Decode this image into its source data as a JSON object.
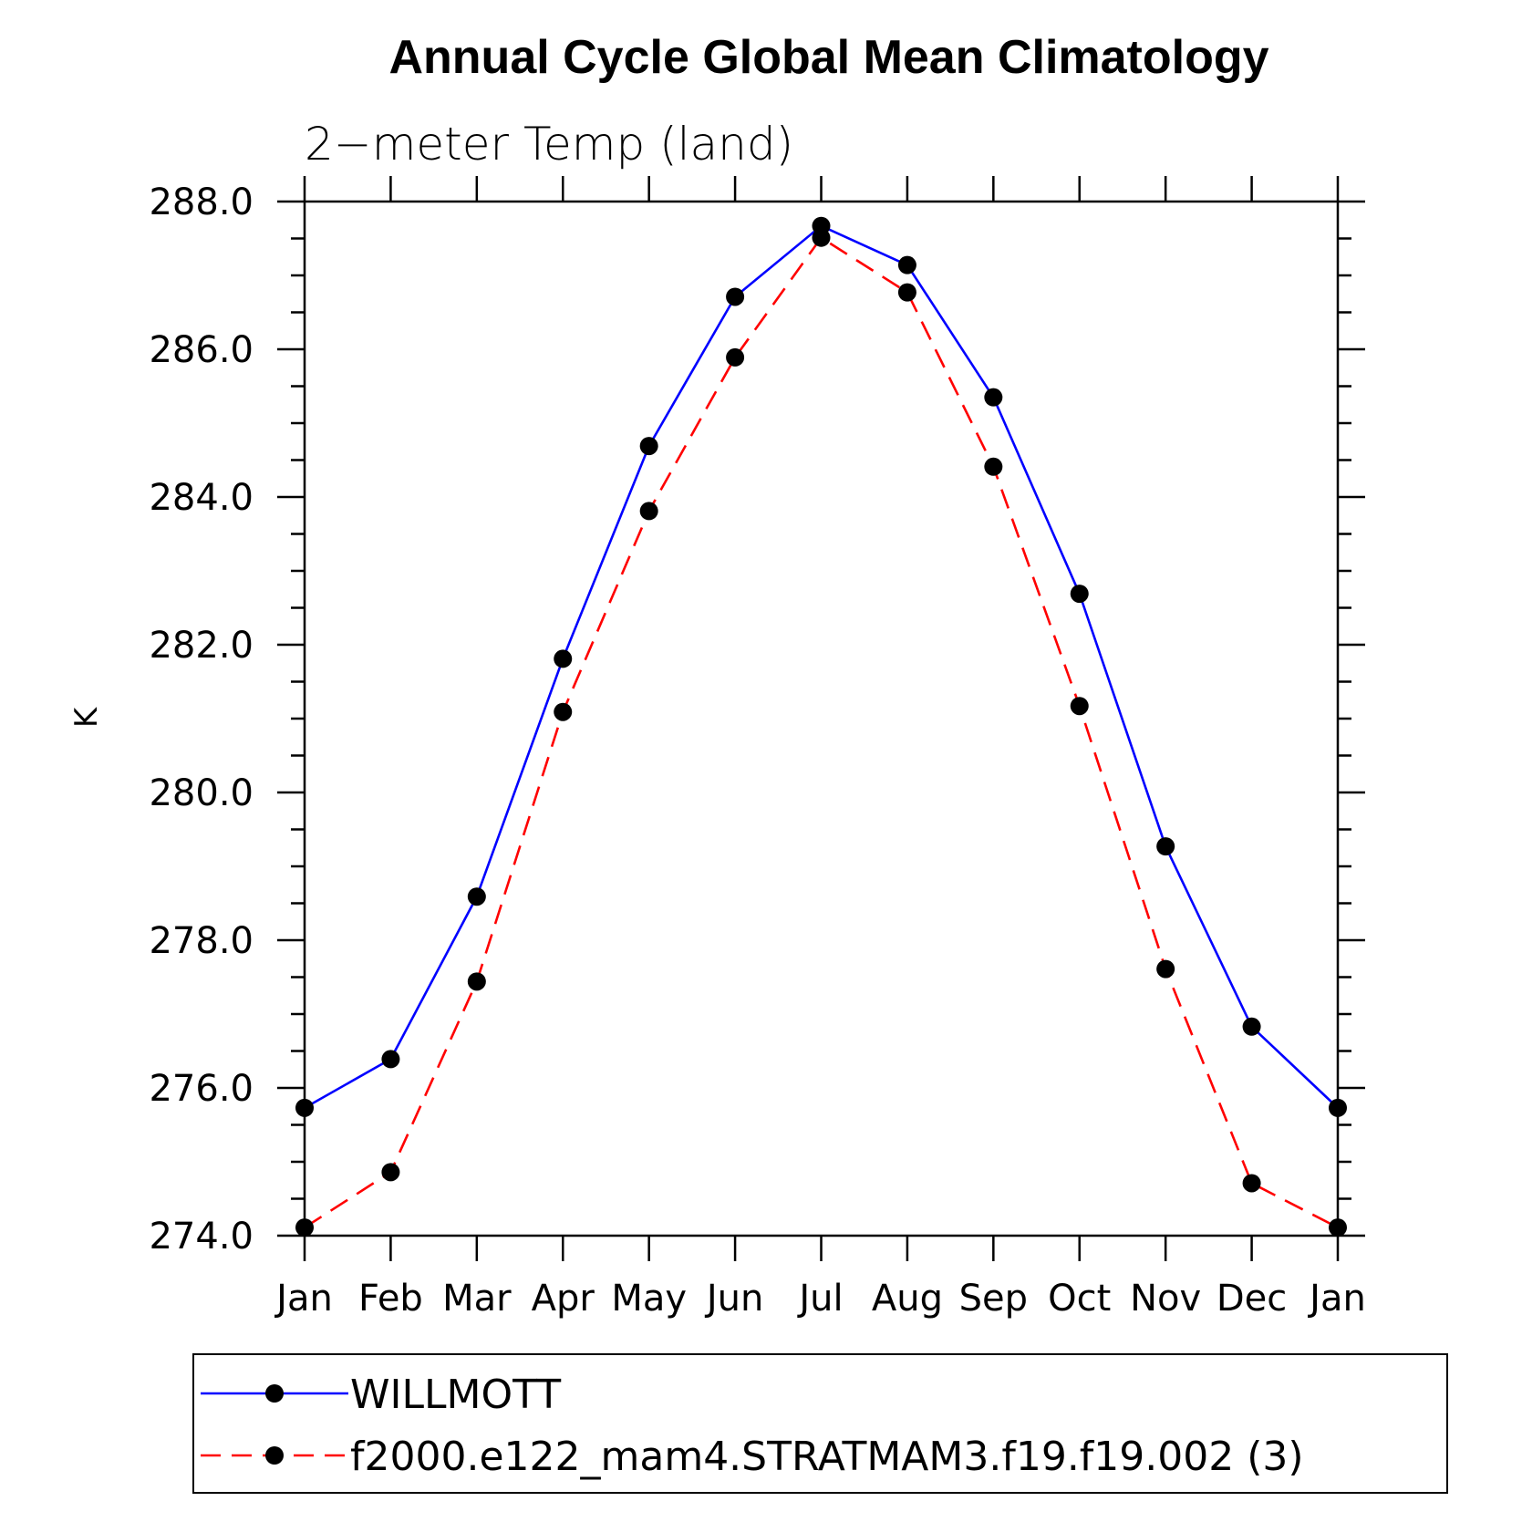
{
  "chart_data": {
    "type": "line",
    "title": "Annual Cycle Global Mean Climatology",
    "subtitle": "2−meter Temp (land)",
    "xlabel": "",
    "ylabel": "K",
    "categories": [
      "Jan",
      "Feb",
      "Mar",
      "Apr",
      "May",
      "Jun",
      "Jul",
      "Aug",
      "Sep",
      "Oct",
      "Nov",
      "Dec",
      "Jan"
    ],
    "ylim": [
      274.0,
      288.0
    ],
    "yticks": [
      "274.0",
      "276.0",
      "278.0",
      "280.0",
      "282.0",
      "284.0",
      "286.0",
      "288.0"
    ],
    "grid": false,
    "legend_position": "bottom",
    "series": [
      {
        "name": "WILLMOTT",
        "color": "#0000ff",
        "line_style": "solid",
        "marker": "filled-circle",
        "values": [
          275.73,
          276.39,
          278.59,
          281.81,
          284.69,
          286.71,
          287.67,
          287.14,
          285.35,
          282.69,
          279.27,
          276.83,
          275.73
        ]
      },
      {
        "name": "f2000.e122_mam4.STRATMAM3.f19.f19.002 (3)",
        "color": "#ff0000",
        "line_style": "dashed",
        "marker": "filled-circle",
        "values": [
          274.11,
          274.86,
          277.44,
          281.09,
          283.81,
          285.89,
          287.51,
          286.77,
          284.41,
          281.17,
          277.61,
          274.71,
          274.11
        ]
      }
    ]
  }
}
